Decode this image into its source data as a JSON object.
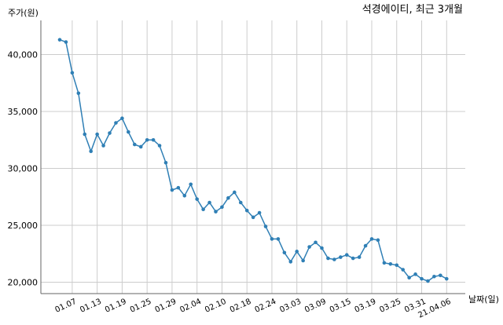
{
  "chart_data": {
    "type": "line",
    "title": "석경에이티, 최근 3개월",
    "xlabel": "날짜(일)",
    "ylabel": "주가(원)",
    "ylim": [
      19000,
      43000
    ],
    "grid": true,
    "line_color": "#2f7fb5",
    "y_ticks": [
      20000,
      25000,
      30000,
      35000,
      40000
    ],
    "y_tick_labels": [
      "20,000",
      "25,000",
      "30,000",
      "35,000",
      "40,000"
    ],
    "x_tick_labels": [
      "01.07",
      "01.13",
      "01.19",
      "01.25",
      "01.29",
      "02.04",
      "02.10",
      "02.18",
      "02.24",
      "03.03",
      "03.09",
      "03.15",
      "03.19",
      "03.25",
      "03.31",
      "21.04.06"
    ],
    "x_tick_indices": [
      2,
      6,
      10,
      14,
      18,
      22,
      26,
      30,
      34,
      38,
      42,
      46,
      50,
      54,
      58,
      62
    ],
    "series": [
      {
        "values": [
          41300,
          41100,
          38400,
          36600,
          33000,
          31500,
          33000,
          32000,
          33100,
          34000,
          34400,
          33200,
          32100,
          31900,
          32500,
          32500,
          32000,
          30500,
          28100,
          28300,
          27600,
          28600,
          27300,
          26400,
          27000,
          26200,
          26600,
          27400,
          27900,
          27000,
          26300,
          25700,
          26100,
          24900,
          23800,
          23800,
          22600,
          21800,
          22700,
          21900,
          23100,
          23500,
          23000,
          22100,
          22000,
          22200,
          22400,
          22100,
          22200,
          23200,
          23800,
          23700,
          21700,
          21600,
          21500,
          21100,
          20400,
          20700,
          20300,
          20100,
          20500,
          20600,
          20300
        ]
      }
    ]
  }
}
